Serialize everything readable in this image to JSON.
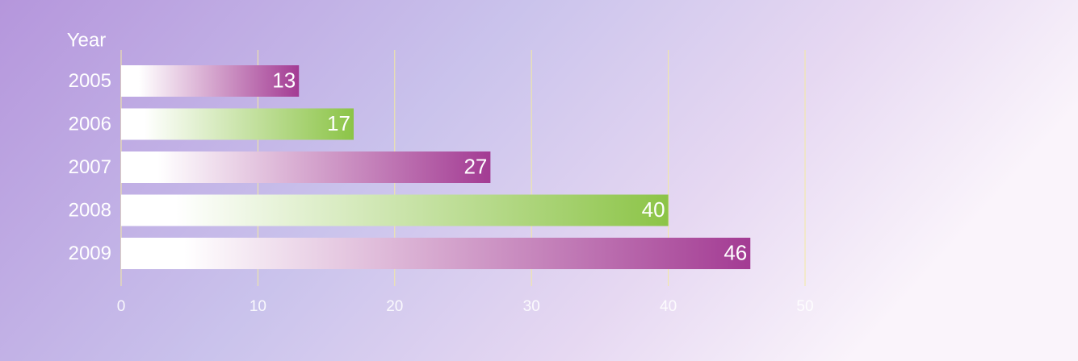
{
  "chart_data": {
    "type": "bar",
    "orientation": "horizontal",
    "y_axis_label": "Year",
    "categories": [
      "2005",
      "2006",
      "2007",
      "2008",
      "2009"
    ],
    "values": [
      13,
      17,
      27,
      40,
      46
    ],
    "colors": [
      "#a33b93",
      "#8cc447",
      "#a33b93",
      "#8cc447",
      "#a33b93"
    ],
    "xlim": [
      0,
      50
    ],
    "xticks": [
      0,
      10,
      20,
      30,
      40,
      50
    ],
    "grid": true
  }
}
